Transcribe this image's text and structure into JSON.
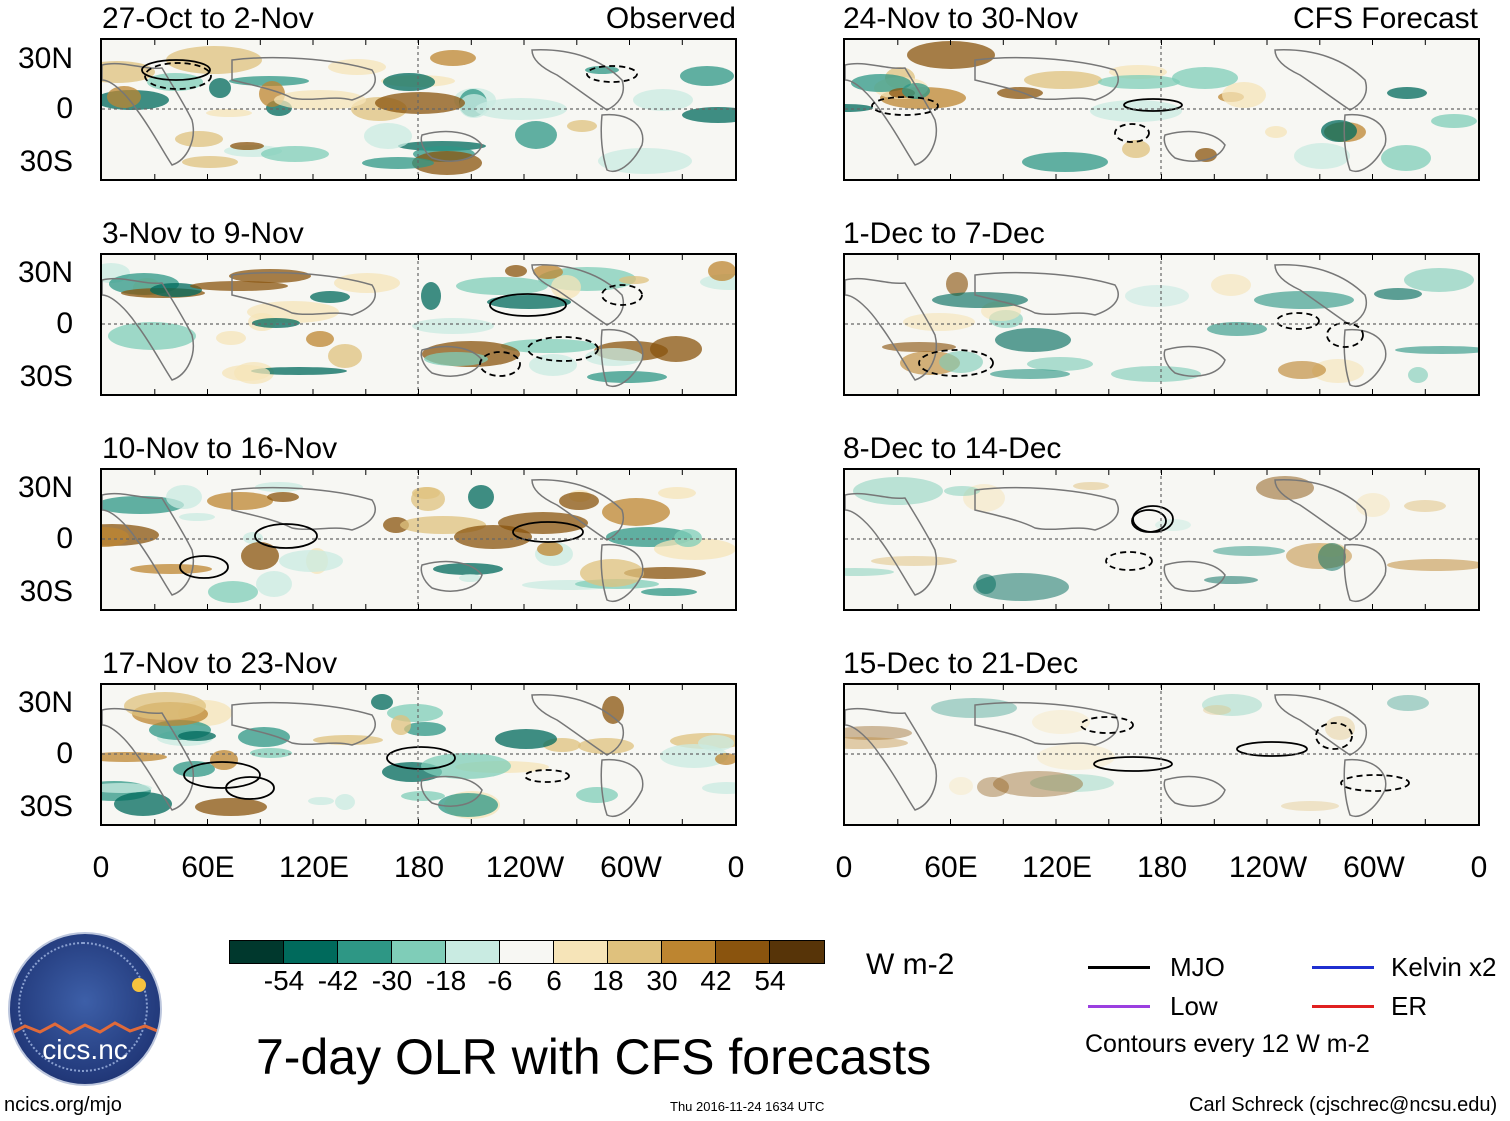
{
  "title": "7-day OLR with CFS forecasts",
  "observed_tag": "Observed",
  "forecast_tag": "CFS Forecast",
  "panels": [
    {
      "title": "27-Oct to 2-Nov"
    },
    {
      "title": "24-Nov to 30-Nov"
    },
    {
      "title": "3-Nov to 9-Nov"
    },
    {
      "title": "1-Dec to 7-Dec"
    },
    {
      "title": "10-Nov to 16-Nov"
    },
    {
      "title": "8-Dec to 14-Dec"
    },
    {
      "title": "17-Nov to 23-Nov"
    },
    {
      "title": "15-Dec to 21-Dec"
    }
  ],
  "y_ticks": [
    "30N",
    "0",
    "30S"
  ],
  "x_ticks": [
    "0",
    "60E",
    "120E",
    "180",
    "120W",
    "60W",
    "0"
  ],
  "colorbar": {
    "units": "W m-2",
    "labels": [
      "-54",
      "-42",
      "-30",
      "-18",
      "-6",
      "6",
      "18",
      "30",
      "42",
      "54"
    ],
    "colors": [
      "#00382d",
      "#006a5c",
      "#2e9785",
      "#7fcdb8",
      "#c9ebe2",
      "#f7f7f3",
      "#f6e4b8",
      "#dfc17d",
      "#bd8530",
      "#8a540e",
      "#573408"
    ]
  },
  "legend": {
    "mjo": "MJO",
    "kelvin": "Kelvin x2",
    "low": "Low",
    "er": "ER",
    "contours": "Contours every 12 W m-2",
    "colors": {
      "mjo": "#000000",
      "kelvin": "#1f2fd0",
      "low": "#9b3fe0",
      "er": "#e02020"
    }
  },
  "logo_text": "cics.nc",
  "footer": {
    "left": "ncics.org/mjo",
    "center": "Thu 2016-11-24 1634 UTC",
    "right": "Carl Schreck (cjschrec@ncsu.edu)"
  }
}
